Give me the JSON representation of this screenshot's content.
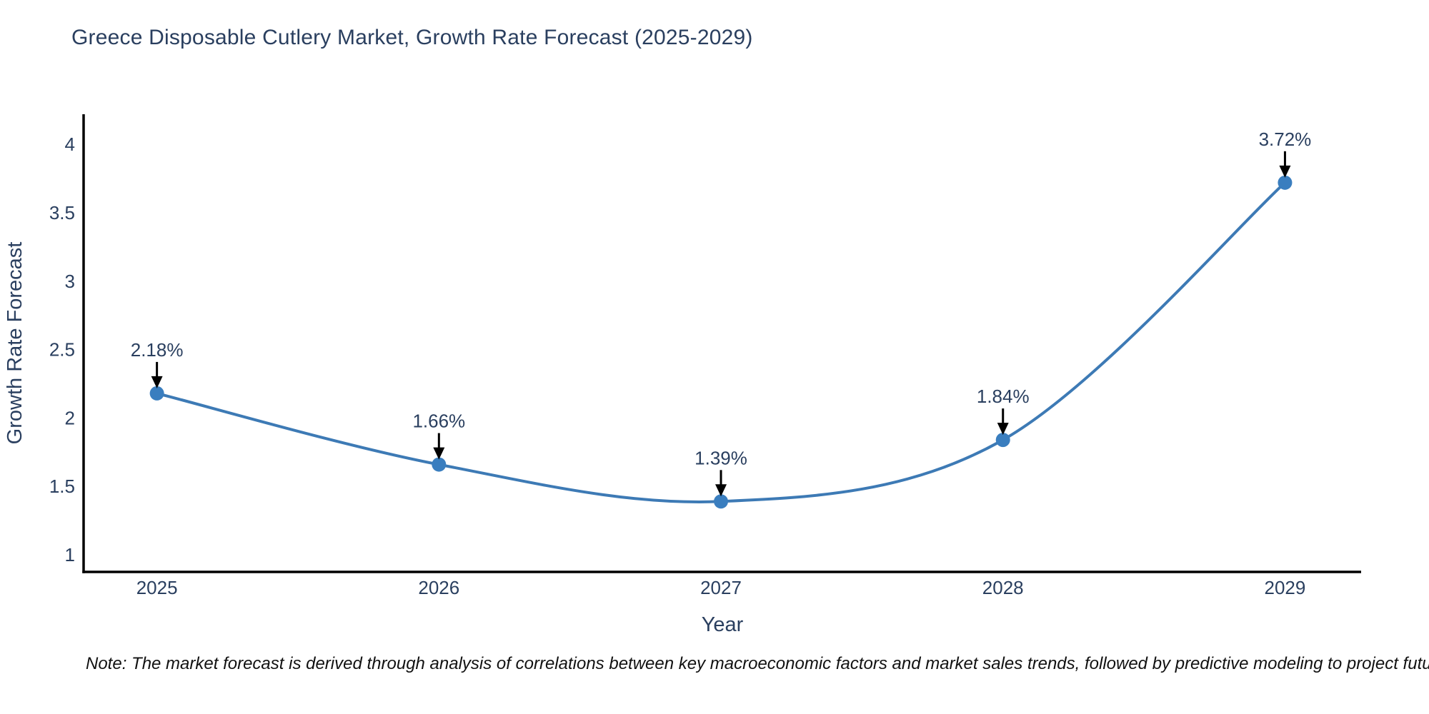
{
  "chart_data": {
    "type": "line",
    "title": "Greece Disposable Cutlery Market, Growth Rate Forecast (2025-2029)",
    "xlabel": "Year",
    "ylabel": "Growth Rate Forecast",
    "x": [
      2025,
      2026,
      2027,
      2028,
      2029
    ],
    "values": [
      2.18,
      1.66,
      1.39,
      1.84,
      3.72
    ],
    "point_labels": [
      "2.18%",
      "1.66%",
      "1.39%",
      "1.84%",
      "3.72%"
    ],
    "xticks": [
      "2025",
      "2026",
      "2027",
      "2028",
      "2029"
    ],
    "yticks": [
      "1",
      "1.5",
      "2",
      "2.5",
      "3",
      "3.5",
      "4"
    ],
    "ytick_values": [
      1,
      1.5,
      2,
      2.5,
      3,
      3.5,
      4
    ],
    "xlim": [
      2024.74,
      2029.27
    ],
    "ylim": [
      0.875,
      4.22
    ],
    "grid": false,
    "legend": "none",
    "line_shape": "spline",
    "annotation_style": "value-label-with-down-arrow",
    "note": "Note: The market forecast is derived through analysis of correlations between key macroeconomic factors and market sales trends, followed by predictive modeling to project future sales",
    "colors": {
      "line": "#3d7ab5",
      "marker": "#3a7ebf",
      "axis": "#000000",
      "text": "#2a3f5f",
      "arrow": "#000000",
      "note_text": "#111111",
      "background": "#ffffff"
    }
  }
}
